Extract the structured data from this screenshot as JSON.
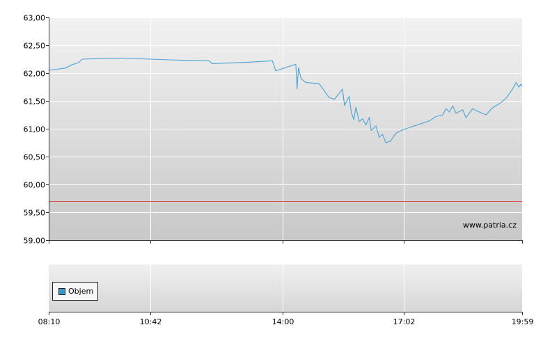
{
  "chart_data": {
    "type": "line",
    "watermark": "www.patria.cz",
    "y_ticks": [
      "63,00",
      "62,50",
      "62,00",
      "61,50",
      "61,00",
      "60,50",
      "60,00",
      "59,50",
      "59.00"
    ],
    "ylim": [
      59.0,
      63.0
    ],
    "x_ticks": [
      "08:10",
      "10:42",
      "14:00",
      "17:02",
      "19:59"
    ],
    "xlim": [
      "08:10",
      "19:59"
    ],
    "reference_line": {
      "value": 59.7,
      "color": "#d9534f"
    },
    "line_color": "#4aa3d6",
    "series": [
      {
        "values": [
          [
            "08:10",
            62.05
          ],
          [
            "08:35",
            62.09
          ],
          [
            "08:45",
            62.15
          ],
          [
            "08:55",
            62.19
          ],
          [
            "09:00",
            62.25
          ],
          [
            "09:30",
            62.26
          ],
          [
            "10:00",
            62.27
          ],
          [
            "10:42",
            62.25
          ],
          [
            "11:30",
            62.23
          ],
          [
            "12:10",
            62.22
          ],
          [
            "12:15",
            62.17
          ],
          [
            "13:00",
            62.19
          ],
          [
            "13:45",
            62.22
          ],
          [
            "13:50",
            62.04
          ],
          [
            "14:20",
            62.16
          ],
          [
            "14:22",
            61.71
          ],
          [
            "14:24",
            62.1
          ],
          [
            "14:28",
            61.9
          ],
          [
            "14:35",
            61.83
          ],
          [
            "14:55",
            61.81
          ],
          [
            "15:10",
            61.56
          ],
          [
            "15:18",
            61.53
          ],
          [
            "15:30",
            61.71
          ],
          [
            "15:33",
            61.42
          ],
          [
            "15:40",
            61.58
          ],
          [
            "15:43",
            61.3
          ],
          [
            "15:47",
            61.16
          ],
          [
            "15:50",
            61.39
          ],
          [
            "15:55",
            61.13
          ],
          [
            "16:00",
            61.18
          ],
          [
            "16:05",
            61.07
          ],
          [
            "16:10",
            61.2
          ],
          [
            "16:13",
            60.97
          ],
          [
            "16:20",
            61.05
          ],
          [
            "16:25",
            60.85
          ],
          [
            "16:30",
            60.9
          ],
          [
            "16:35",
            60.75
          ],
          [
            "16:42",
            60.78
          ],
          [
            "16:50",
            60.92
          ],
          [
            "17:00",
            60.98
          ],
          [
            "17:10",
            61.02
          ],
          [
            "17:20",
            61.06
          ],
          [
            "17:30",
            61.1
          ],
          [
            "17:40",
            61.14
          ],
          [
            "17:50",
            61.22
          ],
          [
            "18:00",
            61.25
          ],
          [
            "18:05",
            61.36
          ],
          [
            "18:10",
            61.3
          ],
          [
            "18:15",
            61.41
          ],
          [
            "18:20",
            61.28
          ],
          [
            "18:30",
            61.34
          ],
          [
            "18:35",
            61.2
          ],
          [
            "18:45",
            61.36
          ],
          [
            "18:55",
            61.3
          ],
          [
            "19:05",
            61.25
          ],
          [
            "19:15",
            61.38
          ],
          [
            "19:25",
            61.45
          ],
          [
            "19:35",
            61.55
          ],
          [
            "19:45",
            61.72
          ],
          [
            "19:50",
            61.83
          ],
          [
            "19:54",
            61.75
          ],
          [
            "19:57",
            61.8
          ],
          [
            "19:59",
            61.76
          ]
        ]
      }
    ],
    "volume_panel": {
      "legend": "Objem",
      "legend_color": "#3a97c9",
      "x_ticks": [
        "08:10",
        "10:42",
        "14:00",
        "17:02",
        "19:59"
      ]
    }
  }
}
